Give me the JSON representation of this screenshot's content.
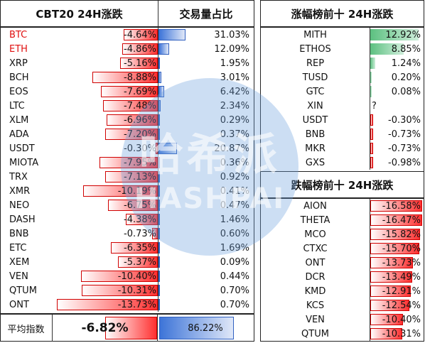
{
  "left": {
    "header_name": "CBT20 24H涨跌",
    "header_share": "交易量占比",
    "rows": [
      {
        "name": "BTC",
        "change": "-4.64%",
        "change_pct": 4.64,
        "share": "31.03%",
        "share_pct": 31.03,
        "highlight": true
      },
      {
        "name": "ETH",
        "change": "-4.86%",
        "change_pct": 4.86,
        "share": "12.09%",
        "share_pct": 12.09,
        "highlight": true
      },
      {
        "name": "XRP",
        "change": "-5.16%",
        "change_pct": 5.16,
        "share": "1.95%",
        "share_pct": 1.95,
        "highlight": false
      },
      {
        "name": "BCH",
        "change": "-8.88%",
        "change_pct": 8.88,
        "share": "3.01%",
        "share_pct": 3.01,
        "highlight": false
      },
      {
        "name": "EOS",
        "change": "-7.69%",
        "change_pct": 7.69,
        "share": "6.42%",
        "share_pct": 6.42,
        "highlight": false
      },
      {
        "name": "LTC",
        "change": "-7.48%",
        "change_pct": 7.48,
        "share": "2.34%",
        "share_pct": 2.34,
        "highlight": false
      },
      {
        "name": "XLM",
        "change": "-6.96%",
        "change_pct": 6.96,
        "share": "0.29%",
        "share_pct": 0.29,
        "highlight": false
      },
      {
        "name": "ADA",
        "change": "-7.20%",
        "change_pct": 7.2,
        "share": "0.37%",
        "share_pct": 0.37,
        "highlight": false
      },
      {
        "name": "USDT",
        "change": "-0.30%",
        "change_pct": 0.3,
        "share": "20.87%",
        "share_pct": 20.87,
        "highlight": false
      },
      {
        "name": "MIOTA",
        "change": "-7.95%",
        "change_pct": 7.95,
        "share": "0.36%",
        "share_pct": 0.36,
        "highlight": false
      },
      {
        "name": "TRX",
        "change": "-7.13%",
        "change_pct": 7.13,
        "share": "0.92%",
        "share_pct": 0.92,
        "highlight": false
      },
      {
        "name": "XMR",
        "change": "-10.19%",
        "change_pct": 10.19,
        "share": "0.41%",
        "share_pct": 0.41,
        "highlight": false
      },
      {
        "name": "NEO",
        "change": "-6.75%",
        "change_pct": 6.75,
        "share": "0.47%",
        "share_pct": 0.47,
        "highlight": false
      },
      {
        "name": "DASH",
        "change": "-4.38%",
        "change_pct": 4.38,
        "share": "1.46%",
        "share_pct": 1.46,
        "highlight": false
      },
      {
        "name": "BNB",
        "change": "-0.73%",
        "change_pct": 0.73,
        "share": "0.60%",
        "share_pct": 0.6,
        "highlight": false
      },
      {
        "name": "ETC",
        "change": "-6.35%",
        "change_pct": 6.35,
        "share": "1.69%",
        "share_pct": 1.69,
        "highlight": false
      },
      {
        "name": "XEM",
        "change": "-5.37%",
        "change_pct": 5.37,
        "share": "0.09%",
        "share_pct": 0.09,
        "highlight": false
      },
      {
        "name": "VEN",
        "change": "-10.40%",
        "change_pct": 10.4,
        "share": "0.44%",
        "share_pct": 0.44,
        "highlight": false
      },
      {
        "name": "QTUM",
        "change": "-10.31%",
        "change_pct": 10.31,
        "share": "0.70%",
        "share_pct": 0.7,
        "highlight": false
      },
      {
        "name": "ONT",
        "change": "-13.73%",
        "change_pct": 13.73,
        "share": "0.70%",
        "share_pct": 0.7,
        "highlight": false
      }
    ],
    "avg_label": "平均指数",
    "avg_change": "-6.82%",
    "avg_share": "86.22%"
  },
  "gainers": {
    "title": "涨幅榜前十 24H涨跌",
    "rows": [
      {
        "name": "MITH",
        "change": "12.92%",
        "change_pct": 12.92
      },
      {
        "name": "ETHOS",
        "change": "8.85%",
        "change_pct": 8.85
      },
      {
        "name": "REP",
        "change": "1.24%",
        "change_pct": 1.24
      },
      {
        "name": "TUSD",
        "change": "0.20%",
        "change_pct": 0.2
      },
      {
        "name": "GTC",
        "change": "0.08%",
        "change_pct": 0.08
      },
      {
        "name": "XIN",
        "change": "?",
        "change_pct": 0
      },
      {
        "name": "USDT",
        "change": "-0.30%",
        "change_pct": -0.3
      },
      {
        "name": "BNB",
        "change": "-0.73%",
        "change_pct": -0.73
      },
      {
        "name": "MKR",
        "change": "-0.73%",
        "change_pct": -0.73
      },
      {
        "name": "GXS",
        "change": "-0.98%",
        "change_pct": -0.98
      }
    ]
  },
  "losers": {
    "title": "跌幅榜前十 24H涨跌",
    "rows": [
      {
        "name": "AION",
        "change": "-16.58%",
        "change_pct": 16.58
      },
      {
        "name": "THETA",
        "change": "-16.47%",
        "change_pct": 16.47
      },
      {
        "name": "MCO",
        "change": "-15.82%",
        "change_pct": 15.82
      },
      {
        "name": "CTXC",
        "change": "-15.70%",
        "change_pct": 15.7
      },
      {
        "name": "ONT",
        "change": "-13.73%",
        "change_pct": 13.73
      },
      {
        "name": "DCR",
        "change": "-13.49%",
        "change_pct": 13.49
      },
      {
        "name": "KMD",
        "change": "-12.91%",
        "change_pct": 12.91
      },
      {
        "name": "KCS",
        "change": "-12.54%",
        "change_pct": 12.54
      },
      {
        "name": "VEN",
        "change": "-10.40%",
        "change_pct": 10.4
      },
      {
        "name": "QTUM",
        "change": "-10.31%",
        "change_pct": 10.31
      }
    ]
  },
  "watermark": {
    "cn": "哈希派",
    "en": "HASHPAI"
  }
}
